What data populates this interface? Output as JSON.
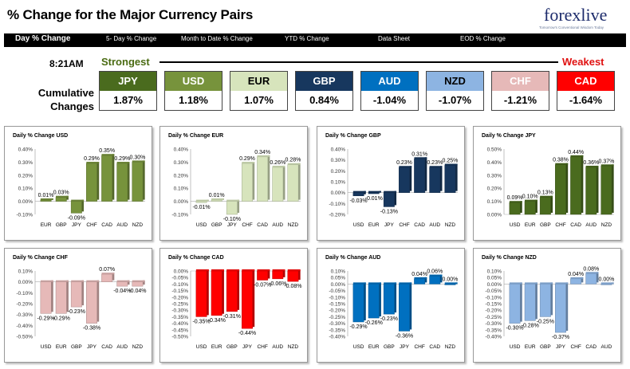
{
  "header": {
    "title": "% Change for the Major Currency Pairs",
    "logo": "forexlive",
    "logo_tagline": "Tomorrow's Conventional Wisdom Today"
  },
  "tabs": [
    {
      "label": "Day % Change",
      "active": true
    },
    {
      "label": "5- Day % Change"
    },
    {
      "label": "Month to Date % Change"
    },
    {
      "label": "YTD % Change"
    },
    {
      "label": "Data Sheet"
    },
    {
      "label": "EOD % Change"
    }
  ],
  "summary": {
    "time": "8:21AM",
    "strongest_label": "Strongest",
    "weakest_label": "Weakest",
    "cumulative_label_1": "Cumulative",
    "cumulative_label_2": "Changes",
    "currencies": [
      {
        "code": "JPY",
        "value": "1.87%",
        "color": "#4a6b1e",
        "text": "#ffffff"
      },
      {
        "code": "USD",
        "value": "1.18%",
        "color": "#77933c",
        "text": "#ffffff"
      },
      {
        "code": "EUR",
        "value": "1.07%",
        "color": "#d7e4bc",
        "text": "#000000"
      },
      {
        "code": "GBP",
        "value": "0.84%",
        "color": "#17375e",
        "text": "#ffffff"
      },
      {
        "code": "AUD",
        "value": "-1.04%",
        "color": "#0070c0",
        "text": "#ffffff"
      },
      {
        "code": "NZD",
        "value": "-1.07%",
        "color": "#8db4e2",
        "text": "#000000"
      },
      {
        "code": "CHF",
        "value": "-1.21%",
        "color": "#e6b9b8",
        "text": "#ffffff"
      },
      {
        "code": "CAD",
        "value": "-1.64%",
        "color": "#ff0000",
        "text": "#ffffff"
      }
    ]
  },
  "chart_data": [
    {
      "type": "bar",
      "title": "Daily % Change USD",
      "categories": [
        "EUR",
        "GBP",
        "JPY",
        "CHF",
        "CAD",
        "AUD",
        "NZD"
      ],
      "values": [
        0.01,
        0.03,
        -0.09,
        0.29,
        0.35,
        0.29,
        0.3
      ],
      "labels": [
        "0.01%",
        "0.03%",
        "-0.09%",
        "0.29%",
        "0.35%",
        "0.29%",
        "0.30%"
      ],
      "yticks": [
        "0.40%",
        "0.30%",
        "0.20%",
        "0.10%",
        "0.00%",
        "-0.10%"
      ],
      "ylim": [
        -0.1,
        0.4
      ],
      "color": "#77933c"
    },
    {
      "type": "bar",
      "title": "Daily % Change EUR",
      "categories": [
        "USD",
        "GBP",
        "JPY",
        "CHF",
        "CAD",
        "AUD",
        "NZD"
      ],
      "values": [
        -0.01,
        0.01,
        -0.1,
        0.29,
        0.34,
        0.26,
        0.28
      ],
      "labels": [
        "-0.01%",
        "0.01%",
        "-0.10%",
        "0.29%",
        "0.34%",
        "0.26%",
        "0.28%"
      ],
      "yticks": [
        "0.40%",
        "0.30%",
        "0.20%",
        "0.10%",
        "0.00%",
        "-0.10%"
      ],
      "ylim": [
        -0.1,
        0.4
      ],
      "color": "#d7e4bc"
    },
    {
      "type": "bar",
      "title": "Daily % Change GBP",
      "categories": [
        "USD",
        "EUR",
        "JPY",
        "CHF",
        "CAD",
        "AUD",
        "NZD"
      ],
      "values": [
        -0.03,
        -0.01,
        -0.13,
        0.23,
        0.31,
        0.23,
        0.25
      ],
      "labels": [
        "-0.03%",
        "-0.01%",
        "-0.13%",
        "0.23%",
        "0.31%",
        "0.23%",
        "0.25%"
      ],
      "yticks": [
        "0.40%",
        "0.30%",
        "0.20%",
        "0.10%",
        "0.00%",
        "-0.10%",
        "-0.20%"
      ],
      "ylim": [
        -0.2,
        0.4
      ],
      "color": "#17375e"
    },
    {
      "type": "bar",
      "title": "Daily % Change JPY",
      "categories": [
        "USD",
        "EUR",
        "GBP",
        "CHF",
        "CAD",
        "AUD",
        "NZD"
      ],
      "values": [
        0.09,
        0.1,
        0.13,
        0.38,
        0.44,
        0.36,
        0.37
      ],
      "labels": [
        "0.09%",
        "0.10%",
        "0.13%",
        "0.38%",
        "0.44%",
        "0.36%",
        "0.37%"
      ],
      "yticks": [
        "0.50%",
        "0.40%",
        "0.30%",
        "0.20%",
        "0.10%",
        "0.00%"
      ],
      "ylim": [
        0,
        0.5
      ],
      "color": "#4a6b1e"
    },
    {
      "type": "bar",
      "title": "Daily % Change CHF",
      "categories": [
        "USD",
        "EUR",
        "GBP",
        "JPY",
        "CAD",
        "AUD",
        "NZD"
      ],
      "values": [
        -0.29,
        -0.29,
        -0.23,
        -0.38,
        0.07,
        -0.04,
        -0.04
      ],
      "labels": [
        "-0.29%",
        "-0.29%",
        "-0.23%",
        "-0.38%",
        "0.07%",
        "-0.04%",
        "-0.04%"
      ],
      "yticks": [
        "0.10%",
        "0.00%",
        "-0.10%",
        "-0.20%",
        "-0.30%",
        "-0.40%",
        "-0.50%"
      ],
      "ylim": [
        -0.5,
        0.1
      ],
      "color": "#e6b9b8"
    },
    {
      "type": "bar",
      "title": "Daily % Change CAD",
      "categories": [
        "USD",
        "EUR",
        "GBP",
        "JPY",
        "CHF",
        "AUD",
        "NZD"
      ],
      "values": [
        -0.35,
        -0.34,
        -0.31,
        -0.44,
        -0.07,
        -0.06,
        -0.08
      ],
      "labels": [
        "-0.35%",
        "-0.34%",
        "-0.31%",
        "-0.44%",
        "-0.07%",
        "-0.06%",
        "-0.08%"
      ],
      "yticks": [
        "0.00%",
        "-0.05%",
        "-0.10%",
        "-0.15%",
        "-0.20%",
        "-0.25%",
        "-0.30%",
        "-0.35%",
        "-0.40%",
        "-0.45%",
        "-0.50%"
      ],
      "ylim": [
        -0.5,
        0
      ],
      "color": "#ff0000"
    },
    {
      "type": "bar",
      "title": "Daily % Change AUD",
      "categories": [
        "USD",
        "EUR",
        "GBP",
        "JPY",
        "CHF",
        "CAD",
        "NZD"
      ],
      "values": [
        -0.29,
        -0.26,
        -0.23,
        -0.36,
        0.04,
        0.06,
        0.0
      ],
      "labels": [
        "-0.29%",
        "-0.26%",
        "-0.23%",
        "-0.36%",
        "0.04%",
        "0.06%",
        "0.00%"
      ],
      "yticks": [
        "0.10%",
        "0.05%",
        "0.00%",
        "-0.05%",
        "-0.10%",
        "-0.15%",
        "-0.20%",
        "-0.25%",
        "-0.30%",
        "-0.35%",
        "-0.40%"
      ],
      "ylim": [
        -0.4,
        0.1
      ],
      "color": "#0070c0"
    },
    {
      "type": "bar",
      "title": "Daily % Change NZD",
      "categories": [
        "USD",
        "EUR",
        "GBP",
        "JPY",
        "CHF",
        "CAD",
        "AUD"
      ],
      "values": [
        -0.3,
        -0.28,
        -0.25,
        -0.37,
        0.04,
        0.08,
        0.0
      ],
      "labels": [
        "-0.30%",
        "-0.28%",
        "-0.25%",
        "-0.37%",
        "0.04%",
        "0.08%",
        "0.00%"
      ],
      "yticks": [
        "0.10%",
        "0.05%",
        "0.00%",
        "-0.05%",
        "-0.10%",
        "-0.15%",
        "-0.20%",
        "-0.25%",
        "-0.30%",
        "-0.35%",
        "-0.40%"
      ],
      "ylim": [
        -0.4,
        0.1
      ],
      "color": "#8db4e2"
    }
  ]
}
